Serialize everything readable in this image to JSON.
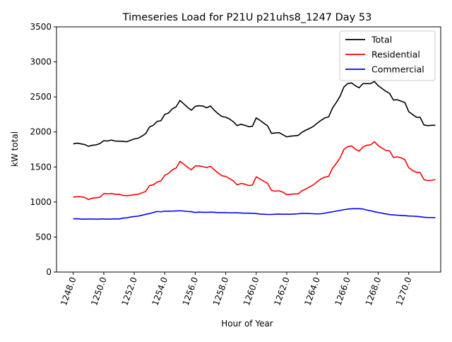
{
  "chart_data": {
    "type": "line",
    "title": "Timeseries Load for P21U p21uhs8_1247  Day 53",
    "xlabel": "Hour of Year",
    "ylabel": "kW total",
    "xlim": [
      1246.9,
      1272.1
    ],
    "ylim": [
      0,
      3500
    ],
    "x_ticks": [
      1248,
      1250,
      1252,
      1254,
      1256,
      1258,
      1260,
      1262,
      1264,
      1266,
      1268,
      1270
    ],
    "x_tick_labels": [
      "1248.0",
      "1250.0",
      "1252.0",
      "1254.0",
      "1256.0",
      "1258.0",
      "1260.0",
      "1262.0",
      "1264.0",
      "1266.0",
      "1268.0",
      "1270.0"
    ],
    "y_ticks": [
      0,
      500,
      1000,
      1500,
      2000,
      2500,
      3000,
      3500
    ],
    "y_tick_labels": [
      "0",
      "500",
      "1000",
      "1500",
      "2000",
      "2500",
      "3000",
      "3500"
    ],
    "grid": false,
    "legend_position": "top-right",
    "x": [
      1248.0,
      1248.25,
      1248.5,
      1248.75,
      1249.0,
      1249.25,
      1249.5,
      1249.75,
      1250.0,
      1250.25,
      1250.5,
      1250.75,
      1251.0,
      1251.25,
      1251.5,
      1251.75,
      1252.0,
      1252.25,
      1252.5,
      1252.75,
      1253.0,
      1253.25,
      1253.5,
      1253.75,
      1254.0,
      1254.25,
      1254.5,
      1254.75,
      1255.0,
      1255.25,
      1255.5,
      1255.75,
      1256.0,
      1256.25,
      1256.5,
      1256.75,
      1257.0,
      1257.25,
      1257.5,
      1257.75,
      1258.0,
      1258.25,
      1258.5,
      1258.75,
      1259.0,
      1259.25,
      1259.5,
      1259.75,
      1260.0,
      1260.25,
      1260.5,
      1260.75,
      1261.0,
      1261.25,
      1261.5,
      1261.75,
      1262.0,
      1262.25,
      1262.5,
      1262.75,
      1263.0,
      1263.25,
      1263.5,
      1263.75,
      1264.0,
      1264.25,
      1264.5,
      1264.75,
      1265.0,
      1265.25,
      1265.5,
      1265.75,
      1266.0,
      1266.25,
      1266.5,
      1266.75,
      1267.0,
      1267.25,
      1267.5,
      1267.75,
      1268.0,
      1268.25,
      1268.5,
      1268.75,
      1269.0,
      1269.25,
      1269.5,
      1269.75,
      1270.0,
      1270.25,
      1270.5,
      1270.75,
      1271.0,
      1271.25,
      1271.5,
      1271.75
    ],
    "series": [
      {
        "name": "Total",
        "color": "#000000",
        "values": [
          1830,
          1840,
          1830,
          1820,
          1795,
          1810,
          1815,
          1835,
          1875,
          1870,
          1885,
          1870,
          1868,
          1865,
          1860,
          1880,
          1900,
          1910,
          1940,
          1975,
          2070,
          2095,
          2150,
          2160,
          2250,
          2270,
          2330,
          2360,
          2450,
          2400,
          2350,
          2310,
          2365,
          2375,
          2370,
          2345,
          2370,
          2310,
          2260,
          2220,
          2210,
          2185,
          2145,
          2090,
          2110,
          2095,
          2075,
          2080,
          2200,
          2165,
          2125,
          2085,
          1980,
          1985,
          1990,
          1960,
          1930,
          1940,
          1945,
          1950,
          1995,
          2025,
          2050,
          2080,
          2125,
          2165,
          2200,
          2215,
          2340,
          2420,
          2510,
          2640,
          2690,
          2700,
          2660,
          2630,
          2690,
          2690,
          2690,
          2720,
          2660,
          2620,
          2580,
          2550,
          2455,
          2460,
          2440,
          2420,
          2290,
          2250,
          2210,
          2210,
          2100,
          2090,
          2095,
          2095
        ]
      },
      {
        "name": "Residential",
        "color": "#ff0000",
        "values": [
          1070,
          1075,
          1075,
          1065,
          1035,
          1055,
          1060,
          1070,
          1120,
          1115,
          1120,
          1110,
          1110,
          1095,
          1090,
          1095,
          1105,
          1110,
          1130,
          1150,
          1235,
          1245,
          1285,
          1300,
          1380,
          1410,
          1460,
          1485,
          1580,
          1540,
          1495,
          1460,
          1515,
          1515,
          1505,
          1490,
          1510,
          1460,
          1415,
          1375,
          1365,
          1335,
          1300,
          1245,
          1265,
          1255,
          1235,
          1240,
          1360,
          1330,
          1295,
          1265,
          1165,
          1155,
          1160,
          1140,
          1105,
          1110,
          1115,
          1115,
          1160,
          1185,
          1215,
          1245,
          1290,
          1330,
          1355,
          1365,
          1480,
          1550,
          1630,
          1750,
          1790,
          1800,
          1755,
          1725,
          1785,
          1810,
          1815,
          1860,
          1805,
          1770,
          1735,
          1730,
          1635,
          1645,
          1630,
          1605,
          1490,
          1450,
          1425,
          1420,
          1320,
          1305,
          1310,
          1320
        ]
      },
      {
        "name": "Commercial",
        "color": "#0000ff",
        "values": [
          760,
          762,
          757,
          755,
          757,
          757,
          755,
          757,
          757,
          755,
          757,
          760,
          757,
          770,
          773,
          785,
          792,
          798,
          810,
          825,
          835,
          850,
          865,
          860,
          870,
          868,
          870,
          872,
          875,
          870,
          865,
          862,
          850,
          855,
          853,
          852,
          855,
          853,
          848,
          848,
          848,
          846,
          845,
          845,
          843,
          840,
          840,
          838,
          835,
          828,
          825,
          822,
          822,
          825,
          828,
          825,
          825,
          825,
          828,
          832,
          837,
          837,
          835,
          832,
          830,
          832,
          840,
          852,
          860,
          870,
          880,
          890,
          898,
          903,
          905,
          905,
          900,
          885,
          875,
          862,
          850,
          840,
          830,
          820,
          815,
          812,
          808,
          805,
          800,
          798,
          795,
          790,
          782,
          778,
          778,
          775
        ]
      }
    ]
  }
}
